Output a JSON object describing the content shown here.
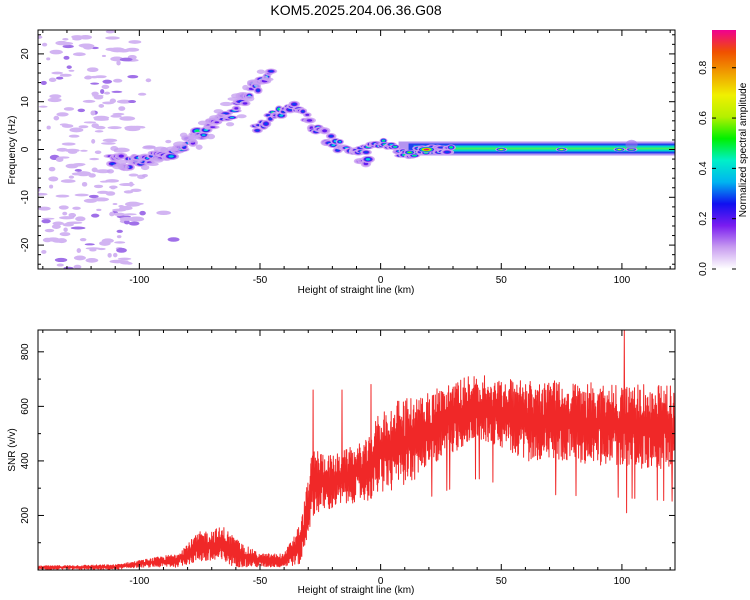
{
  "title": "KOM5.2025.204.06.36.G08",
  "chart_data": [
    {
      "type": "heatmap",
      "xlabel": "Height of straight line (km)",
      "ylabel": "Frequency (Hz)",
      "xlim": [
        -142,
        122
      ],
      "ylim": [
        -25,
        25
      ],
      "xticks": [
        -100,
        -50,
        0,
        50,
        100
      ],
      "yticks": [
        -20,
        -10,
        0,
        10,
        20
      ],
      "colorbar": {
        "label": "Normalized spectral amplitude",
        "range": [
          0,
          0.95
        ],
        "ticks": [
          0.0,
          0.2,
          0.4,
          0.6,
          0.8
        ],
        "colormap": [
          "#ffffff",
          "#c89cf0",
          "#7a1cf0",
          "#1010f0",
          "#00b4f0",
          "#00f0c8",
          "#00f000",
          "#b4f000",
          "#f0f000",
          "#f0a000",
          "#f05000",
          "#f00090"
        ]
      },
      "features": [
        {
          "name": "sweep",
          "x": [
            -112,
            -100,
            -90,
            -80,
            -70,
            -60,
            -52,
            -45
          ],
          "y": [
            -2,
            -3,
            -1,
            1.5,
            5,
            8.5,
            13,
            16
          ]
        },
        {
          "name": "hump",
          "x": [
            -52,
            -43,
            -35,
            -28,
            -20,
            -12,
            -5
          ],
          "y": [
            4.5,
            7.5,
            9,
            5,
            1.5,
            -1,
            -2
          ]
        },
        {
          "name": "line",
          "x": [
            -5,
            0,
            10,
            20,
            50,
            100,
            122
          ],
          "y": [
            0,
            1.5,
            -1,
            0,
            0,
            0,
            0
          ]
        }
      ]
    },
    {
      "type": "line",
      "xlabel": "Height of straight line (km)",
      "ylabel": "SNR (v/v)",
      "xlim": [
        -142,
        122
      ],
      "ylim": [
        0,
        880
      ],
      "xticks": [
        -100,
        -50,
        0,
        50,
        100
      ],
      "yticks": [
        200,
        400,
        600,
        800
      ],
      "color": "#f02828",
      "envelope": {
        "x": [
          -142,
          -110,
          -100,
          -85,
          -75,
          -65,
          -58,
          -50,
          -40,
          -33,
          -28,
          -20,
          -10,
          -5,
          0,
          10,
          20,
          30,
          40,
          50,
          60,
          80,
          100,
          122
        ],
        "low": [
          2,
          2,
          10,
          10,
          30,
          20,
          10,
          10,
          10,
          20,
          200,
          220,
          250,
          250,
          280,
          300,
          380,
          430,
          480,
          450,
          400,
          390,
          380,
          360
        ],
        "high": [
          15,
          20,
          35,
          60,
          140,
          160,
          100,
          60,
          60,
          180,
          450,
          420,
          460,
          480,
          600,
          630,
          660,
          690,
          720,
          700,
          700,
          690,
          680,
          680
        ]
      },
      "spikes": [
        {
          "x": -28,
          "y": 660
        },
        {
          "x": -16,
          "y": 660
        },
        {
          "x": -4,
          "y": 680
        },
        {
          "x": 101,
          "y": 880
        },
        {
          "x": 102,
          "y": 210
        }
      ]
    }
  ]
}
